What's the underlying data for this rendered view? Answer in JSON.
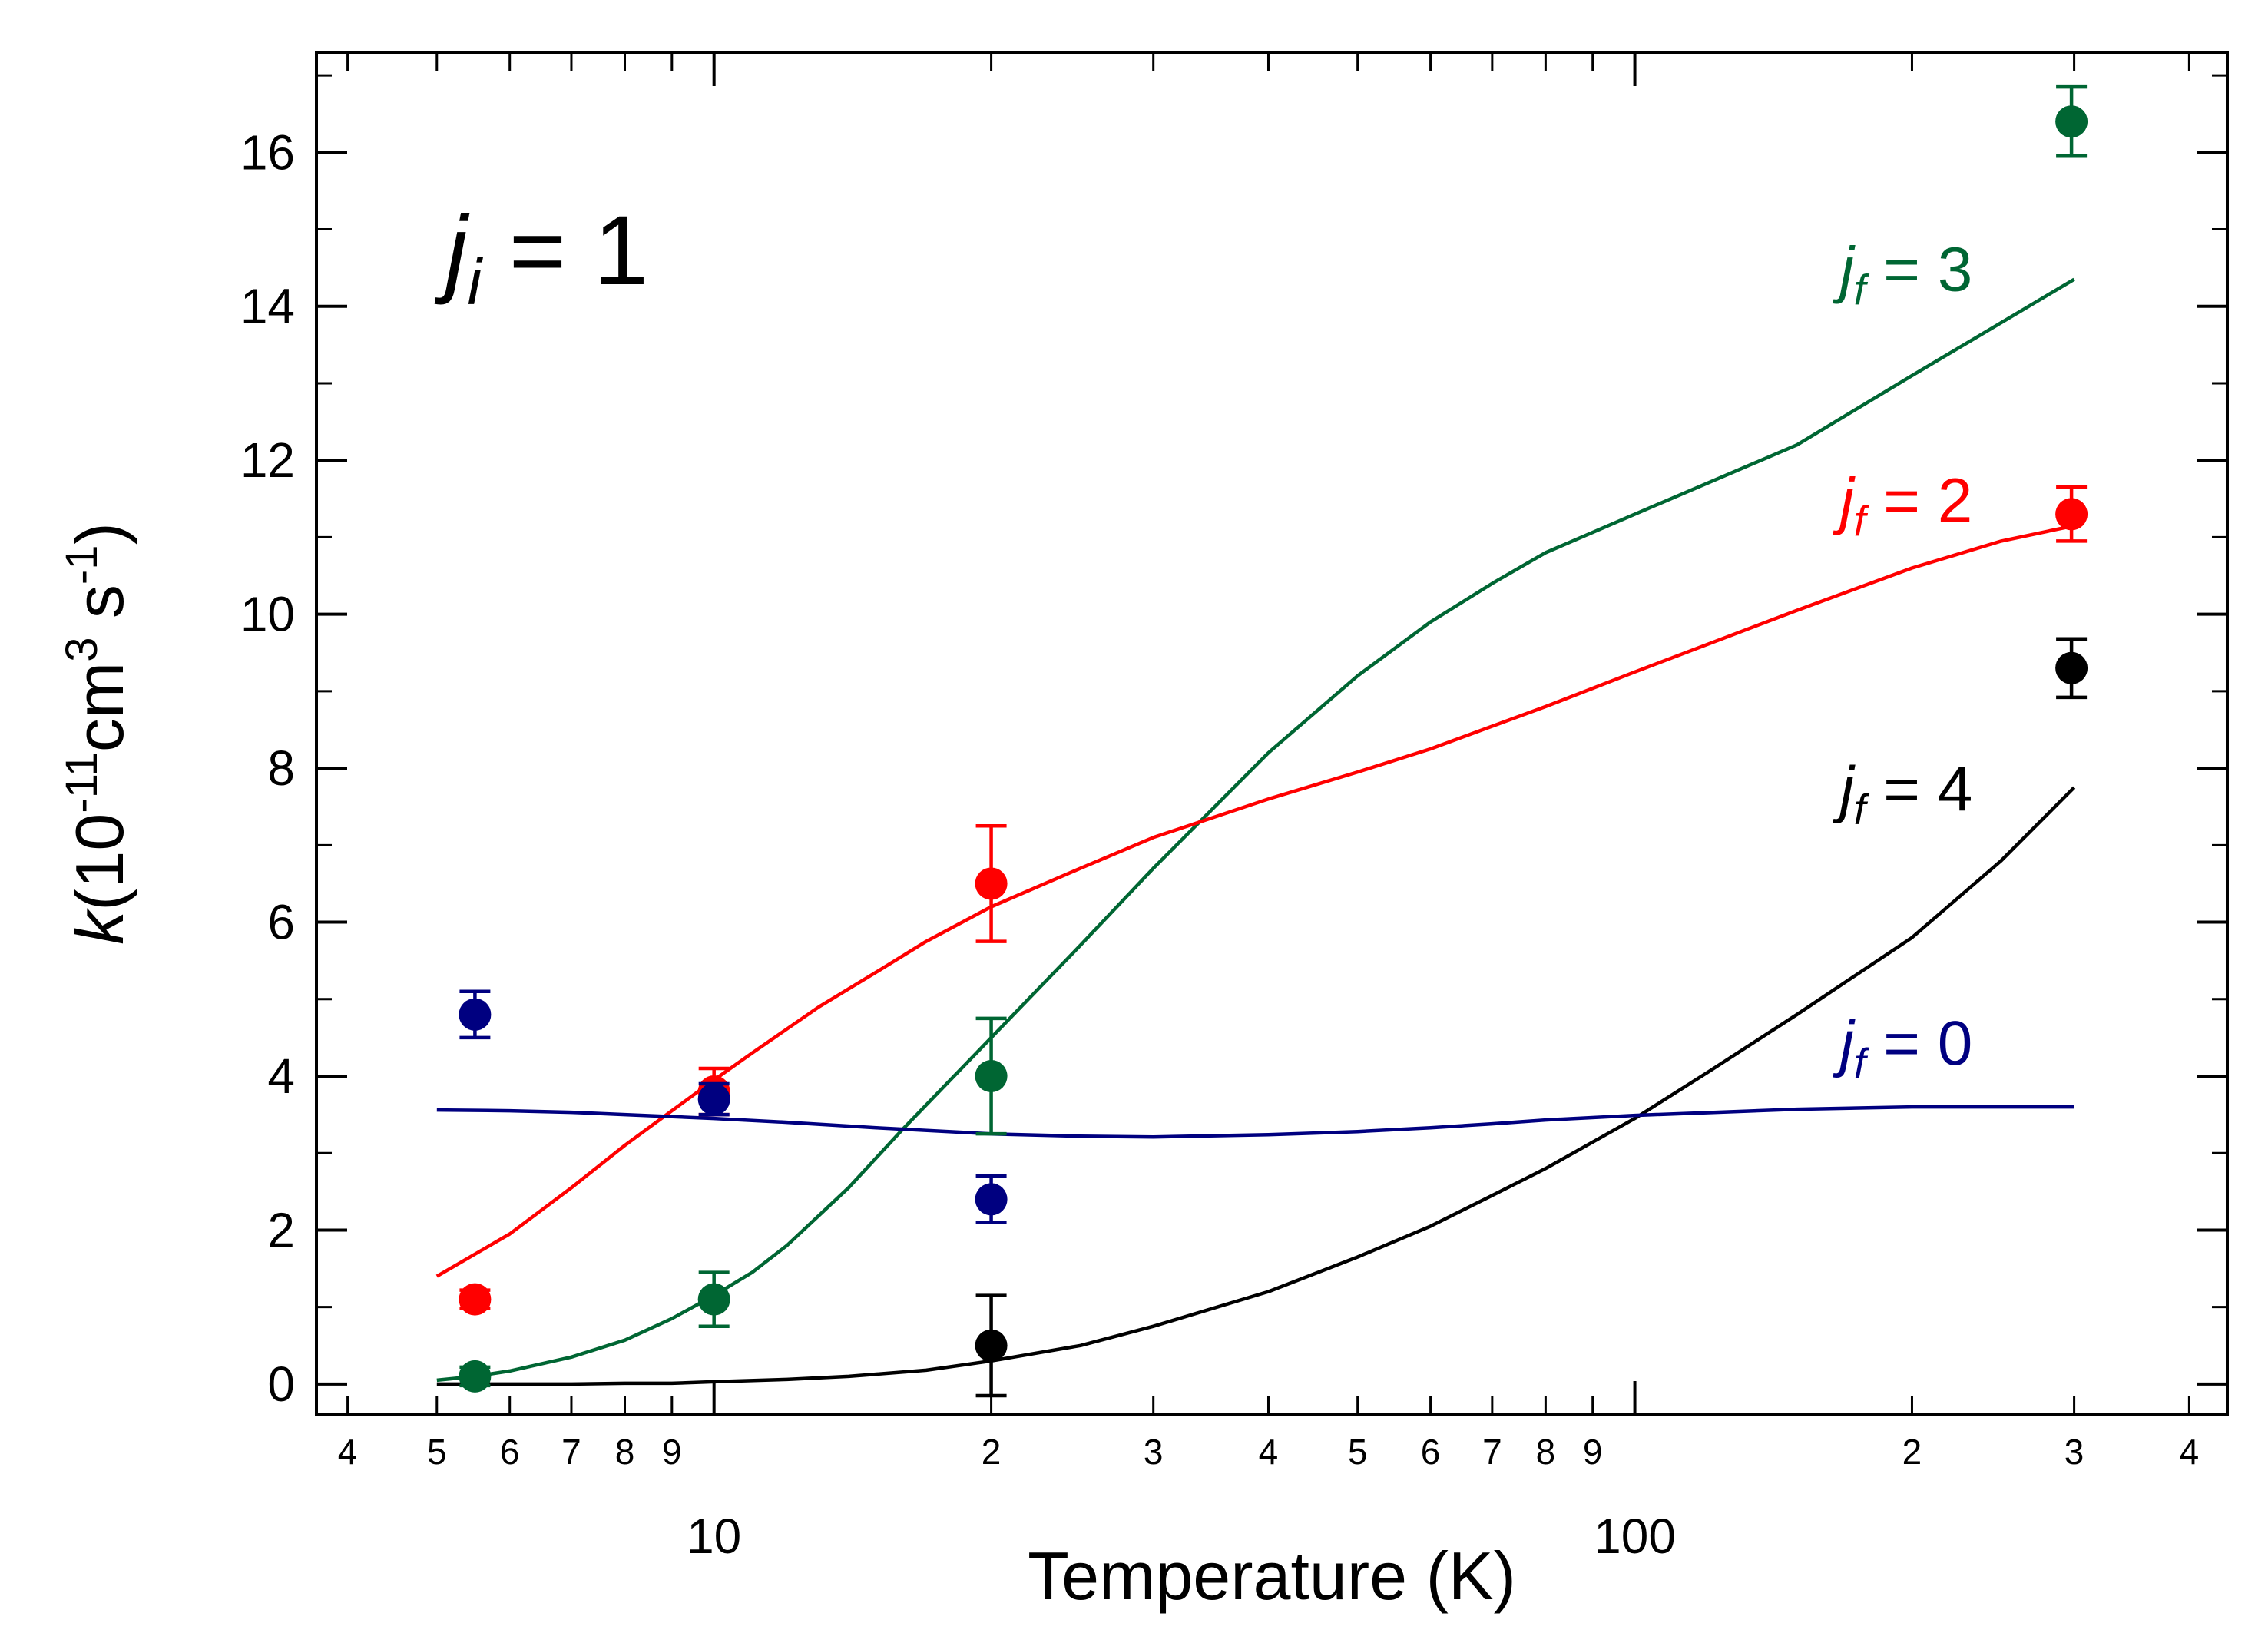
{
  "chart_data": {
    "type": "line",
    "title": "",
    "annotation": {
      "italic": "j",
      "subscript": "i",
      "text": " = 1"
    },
    "xlabel": "Temperature (K)",
    "ylabel": {
      "italic": "k",
      "open": "(10",
      "exp1": "-11",
      "unit1": "cm",
      "exp2": "3",
      "unit2": " s",
      "exp3": "-1",
      "close": ")"
    },
    "xscale": "log",
    "xlim": [
      3.7,
      440
    ],
    "ylim": [
      -0.4,
      17.3
    ],
    "yticks": [
      {
        "v": 0,
        "label": "0"
      },
      {
        "v": 2,
        "label": "2"
      },
      {
        "v": 4,
        "label": "4"
      },
      {
        "v": 6,
        "label": "6"
      },
      {
        "v": 8,
        "label": "8"
      },
      {
        "v": 10,
        "label": "10"
      },
      {
        "v": 12,
        "label": "12"
      },
      {
        "v": 14,
        "label": "14"
      },
      {
        "v": 16,
        "label": "16"
      }
    ],
    "xticks_major": [
      {
        "v": 10,
        "label": "10"
      },
      {
        "v": 100,
        "label": "100"
      }
    ],
    "xticks_minor": [
      {
        "v": 4,
        "label": "4"
      },
      {
        "v": 5,
        "label": "5"
      },
      {
        "v": 6,
        "label": "6"
      },
      {
        "v": 7,
        "label": "7"
      },
      {
        "v": 8,
        "label": "8"
      },
      {
        "v": 9,
        "label": "9"
      },
      {
        "v": 20,
        "label": "2"
      },
      {
        "v": 30,
        "label": "3"
      },
      {
        "v": 40,
        "label": "4"
      },
      {
        "v": 50,
        "label": "5"
      },
      {
        "v": 60,
        "label": "6"
      },
      {
        "v": 70,
        "label": "7"
      },
      {
        "v": 80,
        "label": "8"
      },
      {
        "v": 90,
        "label": "9"
      },
      {
        "v": 200,
        "label": "2"
      },
      {
        "v": 300,
        "label": "3"
      },
      {
        "v": 400,
        "label": "4"
      }
    ],
    "series": [
      {
        "name": "jf = 3",
        "label_text": " = 3",
        "label_sub": "f",
        "color": "#006633",
        "label_at": {
          "x": 167,
          "y": 14.2
        },
        "curve": {
          "x": [
            5,
            5.5,
            6,
            7,
            8,
            9,
            10,
            11,
            12,
            14,
            16,
            20,
            25,
            30,
            40,
            50,
            60,
            70,
            80,
            100,
            150,
            200,
            300
          ],
          "y": [
            0.05,
            0.1,
            0.17,
            0.35,
            0.57,
            0.85,
            1.15,
            1.45,
            1.8,
            2.55,
            3.3,
            4.5,
            5.7,
            6.7,
            8.2,
            9.2,
            9.9,
            10.4,
            10.8,
            11.3,
            12.2,
            13.1,
            14.35
          ]
        },
        "points": [
          {
            "x": 5.5,
            "y": 0.1,
            "err": 0.12
          },
          {
            "x": 10,
            "y": 1.1,
            "err": 0.35
          },
          {
            "x": 20,
            "y": 4.0,
            "err": 0.75
          },
          {
            "x": 298,
            "y": 16.4,
            "err": 0.45
          }
        ]
      },
      {
        "name": "jf = 2",
        "label_text": " = 2",
        "label_sub": "f",
        "color": "#ff0000",
        "label_at": {
          "x": 167,
          "y": 11.2
        },
        "curve": {
          "x": [
            5,
            6,
            7,
            8,
            9,
            10,
            11,
            13,
            15,
            17,
            20,
            25,
            30,
            40,
            50,
            60,
            80,
            100,
            150,
            200,
            250,
            300
          ],
          "y": [
            1.4,
            1.95,
            2.55,
            3.1,
            3.55,
            3.95,
            4.3,
            4.9,
            5.35,
            5.75,
            6.2,
            6.7,
            7.1,
            7.6,
            7.95,
            8.25,
            8.8,
            9.25,
            10.05,
            10.6,
            10.95,
            11.15
          ]
        },
        "points": [
          {
            "x": 5.5,
            "y": 1.1,
            "err": 0.12
          },
          {
            "x": 10,
            "y": 3.8,
            "err": 0.3
          },
          {
            "x": 20,
            "y": 6.5,
            "err": 0.75
          },
          {
            "x": 298,
            "y": 11.3,
            "err": 0.35
          }
        ]
      },
      {
        "name": "jf = 4",
        "label_text": " = 4",
        "label_sub": "f",
        "color": "#000000",
        "label_at": {
          "x": 167,
          "y": 7.45
        },
        "curve": {
          "x": [
            5,
            6,
            7,
            8,
            9,
            10,
            12,
            14,
            17,
            20,
            25,
            30,
            40,
            50,
            60,
            70,
            80,
            100,
            120,
            150,
            200,
            250,
            300
          ],
          "y": [
            0.0,
            0.0,
            0.0,
            0.01,
            0.01,
            0.03,
            0.06,
            0.1,
            0.18,
            0.3,
            0.5,
            0.75,
            1.2,
            1.65,
            2.05,
            2.45,
            2.8,
            3.45,
            4.05,
            4.8,
            5.8,
            6.8,
            7.75
          ]
        },
        "points": [
          {
            "x": 20,
            "y": 0.5,
            "err": 0.65
          },
          {
            "x": 298,
            "y": 9.3,
            "err": 0.38
          }
        ]
      },
      {
        "name": "jf = 0",
        "label_text": " = 0",
        "label_sub": "f",
        "color": "#000080",
        "label_at": {
          "x": 167,
          "y": 4.15
        },
        "curve": {
          "x": [
            5,
            6,
            7,
            8,
            10,
            12,
            15,
            20,
            25,
            30,
            40,
            50,
            60,
            70,
            80,
            100,
            150,
            200,
            300
          ],
          "y": [
            3.56,
            3.55,
            3.53,
            3.5,
            3.45,
            3.4,
            3.33,
            3.25,
            3.22,
            3.21,
            3.24,
            3.28,
            3.33,
            3.38,
            3.43,
            3.49,
            3.57,
            3.6,
            3.6
          ]
        },
        "points": [
          {
            "x": 5.5,
            "y": 4.8,
            "err": 0.3
          },
          {
            "x": 10,
            "y": 3.7,
            "err": 0.2
          },
          {
            "x": 20,
            "y": 2.4,
            "err": 0.3
          }
        ]
      }
    ]
  }
}
